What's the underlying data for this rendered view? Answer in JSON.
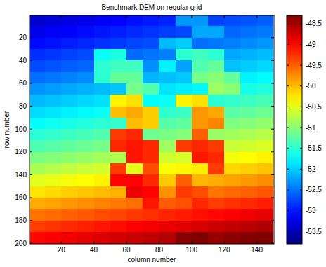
{
  "chart_data": {
    "type": "heatmap",
    "title": "Benchmark DEM on regular grid",
    "x_label": "column number",
    "y_label": "row number",
    "xlim": [
      0.5,
      150.5
    ],
    "ylim": [
      0.5,
      200.5
    ],
    "xticks": [
      20,
      40,
      60,
      80,
      100,
      120,
      140
    ],
    "yticks": [
      20,
      40,
      60,
      80,
      100,
      120,
      140,
      160,
      180,
      200
    ],
    "x": [
      5,
      15,
      25,
      35,
      45,
      55,
      65,
      75,
      85,
      95,
      105,
      115,
      125,
      135,
      145
    ],
    "y": [
      5,
      15,
      25,
      35,
      45,
      55,
      65,
      75,
      85,
      95,
      105,
      115,
      125,
      135,
      145,
      155,
      165,
      175,
      185,
      195
    ],
    "values": [
      [
        -53.37,
        -53.32,
        -53.26,
        -53.21,
        -53.15,
        -53.1,
        -53.04,
        -52.99,
        -52.93,
        -52.3,
        -52.3,
        -52.77,
        -52.71,
        -52.66,
        -52.6
      ],
      [
        -53.22,
        -53.17,
        -53.11,
        -53.06,
        -53.0,
        -52.95,
        -52.89,
        -52.84,
        -52.78,
        -52.73,
        -52.2,
        -52.2,
        -52.56,
        -52.51,
        -52.45
      ],
      [
        -53.07,
        -53.02,
        -52.96,
        -52.91,
        -52.85,
        -52.8,
        -52.74,
        -52.69,
        -52.1,
        -52.0,
        -52.52,
        -52.47,
        -52.41,
        -52.36,
        -52.3
      ],
      [
        -52.87,
        -52.82,
        -52.76,
        -52.71,
        -51.7,
        -51.6,
        -52.54,
        -52.49,
        -52.43,
        -51.5,
        -51.4,
        -51.5,
        -52.21,
        -52.16,
        -52.1
      ],
      [
        -52.72,
        -52.67,
        -52.61,
        -52.56,
        -51.5,
        -51.4,
        -51.4,
        -52.34,
        -51.8,
        -52.23,
        -51.3,
        -51.2,
        -52.06,
        -52.01,
        -51.95
      ],
      [
        -52.52,
        -52.47,
        -52.41,
        -52.36,
        -51.5,
        -51.2,
        -51.2,
        -52.14,
        -52.08,
        -52.03,
        -51.1,
        -51.0,
        -51.2,
        -51.81,
        -51.75
      ],
      [
        -52.32,
        -52.27,
        -52.21,
        -52.16,
        -52.1,
        -52.05,
        -51.1,
        -51.3,
        -51.88,
        -51.83,
        -51.77,
        -50.9,
        -51.0,
        -51.61,
        -51.55
      ],
      [
        -52.12,
        -52.07,
        -52.01,
        -51.96,
        -51.9,
        -50.3,
        -50.2,
        -51.74,
        -51.68,
        -50.3,
        -50.2,
        -51.52,
        -51.46,
        -51.41,
        -51.35
      ],
      [
        -51.92,
        -51.87,
        -51.81,
        -51.76,
        -51.7,
        -50.0,
        -49.9,
        -50.1,
        -51.48,
        -51.43,
        -49.8,
        -49.9,
        -51.26,
        -51.21,
        -51.15
      ],
      [
        -51.72,
        -51.67,
        -51.61,
        -51.56,
        -51.5,
        -51.45,
        -50.0,
        -50.1,
        -51.28,
        -51.23,
        -49.8,
        -49.7,
        -51.06,
        -51.01,
        -50.95
      ],
      [
        -51.52,
        -51.47,
        -51.41,
        -51.36,
        -51.3,
        -49.3,
        -49.2,
        -51.14,
        -51.08,
        -51.03,
        -49.5,
        -50.92,
        -50.86,
        -50.81,
        -50.75
      ],
      [
        -51.32,
        -51.27,
        -51.21,
        -51.16,
        -51.1,
        -49.2,
        -49.1,
        -49.2,
        -50.88,
        -49.3,
        -49.2,
        -49.3,
        -50.66,
        -50.61,
        -50.55
      ],
      [
        -51.07,
        -51.02,
        -50.96,
        -50.91,
        -50.85,
        -50.8,
        -49.1,
        -49.2,
        -50.63,
        -50.58,
        -49.1,
        -49.2,
        -50.41,
        -50.36,
        -50.3
      ],
      [
        -50.82,
        -50.77,
        -50.71,
        -50.66,
        -50.6,
        -49.3,
        -50.49,
        -49.4,
        -50.38,
        -50.33,
        -50.27,
        -49.3,
        -50.16,
        -50.11,
        -50.05
      ],
      [
        -50.52,
        -50.47,
        -50.41,
        -50.36,
        -50.3,
        -49.0,
        -49.0,
        -49.2,
        -50.08,
        -49.5,
        -49.97,
        -49.92,
        -49.86,
        -49.81,
        -49.75
      ],
      [
        -50.22,
        -50.17,
        -50.11,
        -50.06,
        -50.0,
        -49.95,
        -48.9,
        -49.0,
        -49.78,
        -49.3,
        -49.4,
        -49.62,
        -49.56,
        -49.51,
        -49.45
      ],
      [
        -49.92,
        -49.87,
        -49.81,
        -49.76,
        -49.7,
        -49.65,
        -49.59,
        -49.1,
        -49.48,
        -49.43,
        -49.2,
        -49.32,
        -49.26,
        -49.21,
        -49.15
      ],
      [
        -49.62,
        -49.57,
        -49.51,
        -49.46,
        -49.4,
        -49.35,
        -49.29,
        -49.24,
        -49.18,
        -49.13,
        -49.07,
        -49.02,
        -48.96,
        -48.91,
        -48.85
      ],
      [
        -49.32,
        -49.27,
        -49.21,
        -49.16,
        -49.1,
        -49.05,
        -48.99,
        -48.94,
        -48.88,
        -48.83,
        -48.77,
        -48.72,
        -48.66,
        -48.61,
        -48.55
      ],
      [
        -49.02,
        -48.97,
        -48.91,
        -48.86,
        -48.8,
        -48.75,
        -48.69,
        -48.64,
        -48.58,
        -48.35,
        -48.3,
        -48.42,
        -48.36,
        -48.31,
        -48.25
      ]
    ],
    "color_range": [
      -53.8,
      -48.3
    ],
    "color_ticks": [
      -48.5,
      -49,
      -49.5,
      -50,
      -50.5,
      -51,
      -51.5,
      -52,
      -52.5,
      -53,
      -53.5
    ]
  }
}
